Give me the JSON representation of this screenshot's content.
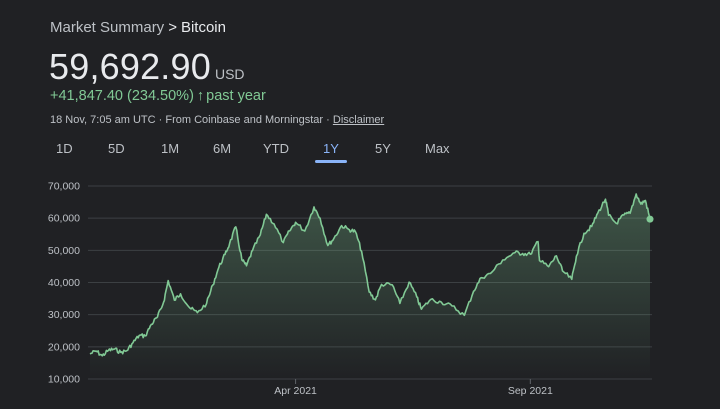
{
  "breadcrumb": {
    "parent": "Market Summary",
    "separator": ">",
    "current": "Bitcoin"
  },
  "price": {
    "value": "59,692.90",
    "currency": "USD"
  },
  "change": {
    "text": "+41,847.40 (234.50%)",
    "arrow": "↑",
    "period": "past year"
  },
  "meta": {
    "timestamp": "18 Nov, 7:05 am UTC",
    "source": "· From Coinbase and Morningstar ·",
    "disclaimer": "Disclaimer"
  },
  "range_tabs": [
    {
      "label": "1D",
      "active": false
    },
    {
      "label": "5D",
      "active": false
    },
    {
      "label": "1M",
      "active": false
    },
    {
      "label": "6M",
      "active": false
    },
    {
      "label": "YTD",
      "active": false
    },
    {
      "label": "1Y",
      "active": true
    },
    {
      "label": "5Y",
      "active": false
    },
    {
      "label": "Max",
      "active": false
    }
  ],
  "colors": {
    "line": "#81c995",
    "accent": "#8ab4f8",
    "grid": "#3c4043",
    "background": "#202124"
  },
  "chart_data": {
    "type": "area",
    "ylim": [
      10000,
      70000
    ],
    "yticks": [
      10000,
      20000,
      30000,
      40000,
      50000,
      60000,
      70000
    ],
    "ytick_labels": [
      "10,000",
      "20,000",
      "30,000",
      "40,000",
      "50,000",
      "60,000",
      "70,000"
    ],
    "xrange": [
      "2020-11-18",
      "2021-11-18"
    ],
    "xticks": [
      {
        "date": "2021-04-01",
        "label": "Apr 2021"
      },
      {
        "date": "2021-09-01",
        "label": "Sep 2021"
      }
    ],
    "grid": true,
    "series": [
      {
        "points": [
          [
            "2020-11-18",
            17800
          ],
          [
            "2020-11-22",
            18700
          ],
          [
            "2020-11-26",
            17200
          ],
          [
            "2020-11-30",
            18900
          ],
          [
            "2020-12-04",
            19300
          ],
          [
            "2020-12-08",
            18300
          ],
          [
            "2020-12-12",
            18800
          ],
          [
            "2020-12-16",
            21300
          ],
          [
            "2020-12-20",
            23500
          ],
          [
            "2020-12-24",
            23400
          ],
          [
            "2020-12-28",
            27000
          ],
          [
            "2021-01-01",
            29300
          ],
          [
            "2021-01-05",
            33900
          ],
          [
            "2021-01-08",
            40600
          ],
          [
            "2021-01-12",
            34500
          ],
          [
            "2021-01-16",
            36500
          ],
          [
            "2021-01-22",
            32100
          ],
          [
            "2021-01-27",
            30600
          ],
          [
            "2021-02-02",
            33500
          ],
          [
            "2021-02-06",
            39200
          ],
          [
            "2021-02-10",
            44800
          ],
          [
            "2021-02-14",
            48700
          ],
          [
            "2021-02-17",
            52100
          ],
          [
            "2021-02-21",
            57300
          ],
          [
            "2021-02-25",
            47000
          ],
          [
            "2021-02-28",
            45200
          ],
          [
            "2021-03-04",
            50000
          ],
          [
            "2021-03-09",
            54800
          ],
          [
            "2021-03-13",
            61200
          ],
          [
            "2021-03-18",
            58200
          ],
          [
            "2021-03-24",
            52400
          ],
          [
            "2021-03-28",
            56000
          ],
          [
            "2021-04-01",
            58700
          ],
          [
            "2021-04-07",
            56000
          ],
          [
            "2021-04-13",
            63500
          ],
          [
            "2021-04-17",
            60000
          ],
          [
            "2021-04-22",
            51500
          ],
          [
            "2021-04-26",
            53700
          ],
          [
            "2021-05-01",
            57700
          ],
          [
            "2021-05-06",
            56400
          ],
          [
            "2021-05-10",
            55800
          ],
          [
            "2021-05-14",
            49700
          ],
          [
            "2021-05-19",
            37000
          ],
          [
            "2021-05-23",
            34600
          ],
          [
            "2021-05-27",
            39400
          ],
          [
            "2021-06-03",
            39300
          ],
          [
            "2021-06-08",
            33500
          ],
          [
            "2021-06-14",
            40100
          ],
          [
            "2021-06-19",
            35500
          ],
          [
            "2021-06-22",
            31700
          ],
          [
            "2021-06-28",
            34700
          ],
          [
            "2021-07-05",
            33900
          ],
          [
            "2021-07-12",
            32700
          ],
          [
            "2021-07-20",
            29800
          ],
          [
            "2021-07-26",
            37300
          ],
          [
            "2021-07-31",
            41500
          ],
          [
            "2021-08-06",
            42800
          ],
          [
            "2021-08-14",
            47000
          ],
          [
            "2021-08-22",
            49300
          ],
          [
            "2021-08-27",
            49000
          ],
          [
            "2021-09-01",
            48800
          ],
          [
            "2021-09-06",
            52700
          ],
          [
            "2021-09-07",
            46800
          ],
          [
            "2021-09-13",
            44900
          ],
          [
            "2021-09-18",
            48300
          ],
          [
            "2021-09-22",
            43600
          ],
          [
            "2021-09-28",
            41000
          ],
          [
            "2021-10-01",
            48200
          ],
          [
            "2021-10-06",
            55300
          ],
          [
            "2021-10-11",
            57400
          ],
          [
            "2021-10-15",
            61600
          ],
          [
            "2021-10-20",
            65900
          ],
          [
            "2021-10-22",
            60900
          ],
          [
            "2021-10-27",
            58400
          ],
          [
            "2021-11-01",
            61000
          ],
          [
            "2021-11-05",
            61500
          ],
          [
            "2021-11-09",
            67500
          ],
          [
            "2021-11-12",
            64400
          ],
          [
            "2021-11-15",
            65500
          ],
          [
            "2021-11-18",
            59692.9
          ]
        ]
      }
    ]
  }
}
